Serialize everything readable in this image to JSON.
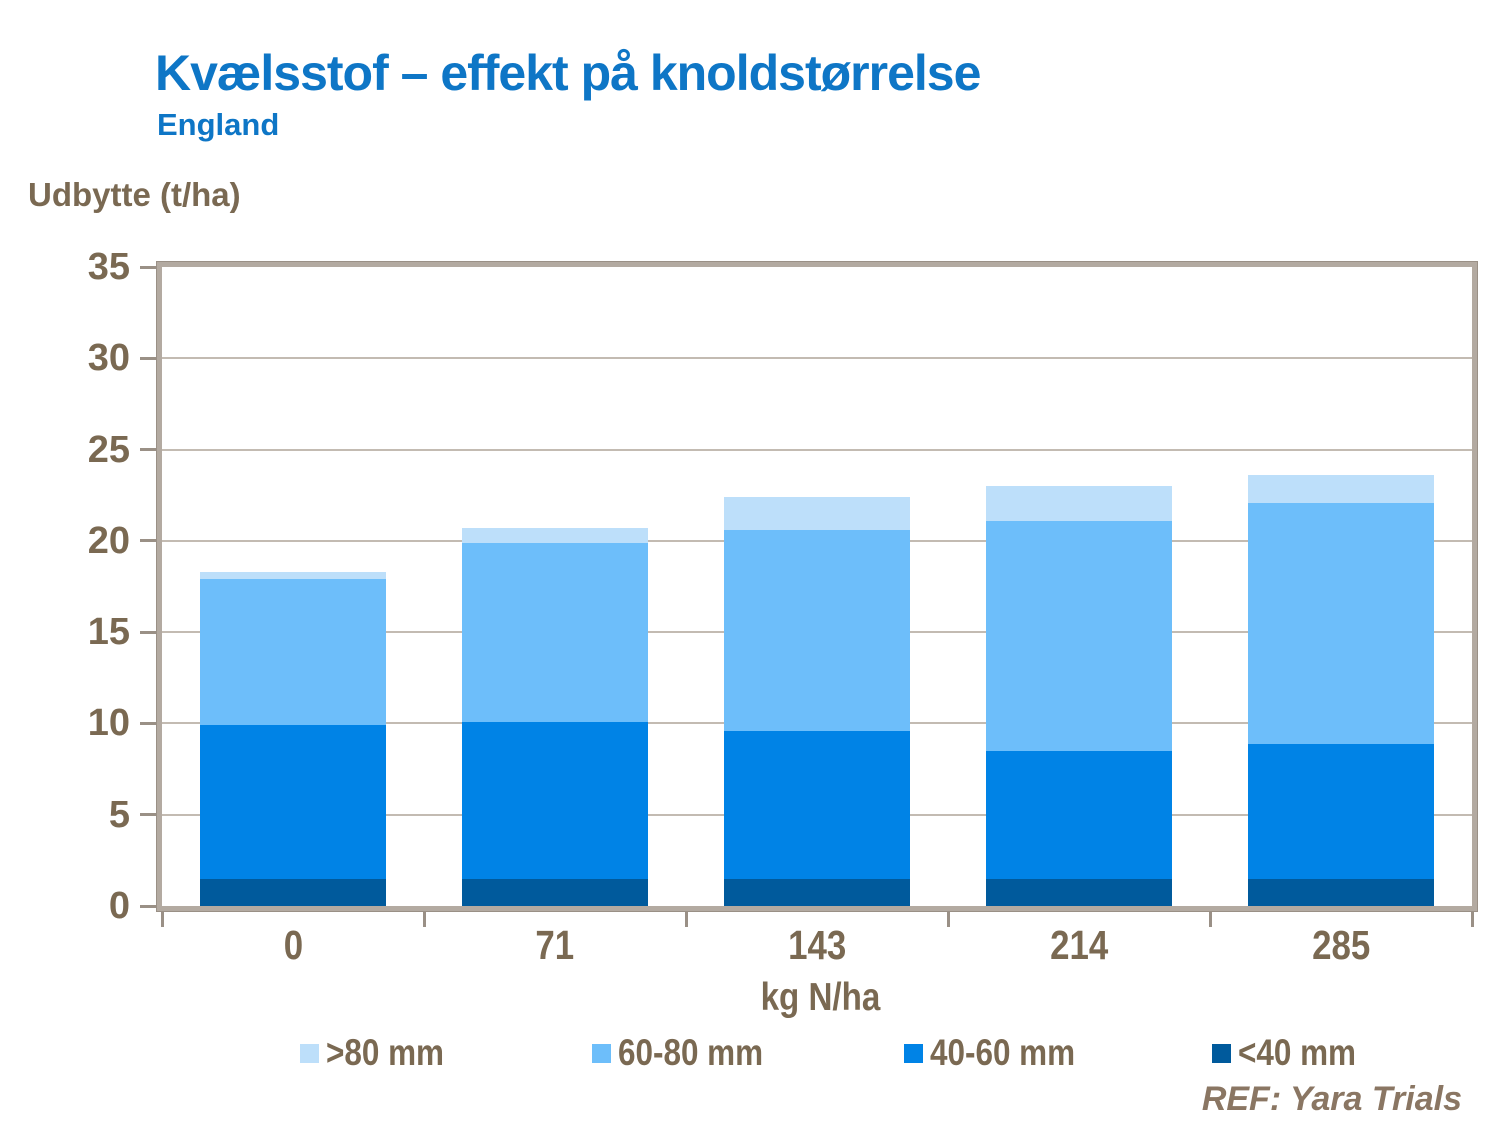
{
  "slide": {
    "title": "Kvælsstof – effekt på knoldstørrelse",
    "subtitle": "England",
    "ref": "REF: Yara Trials"
  },
  "chart_data": {
    "type": "bar",
    "stacked": true,
    "title": "Kvælsstof – effekt på knoldstørrelse (England)",
    "ylabel": "Udbytte (t/ha)",
    "xlabel": "kg N/ha",
    "ylim": [
      0,
      35
    ],
    "yticks": [
      0,
      5,
      10,
      15,
      20,
      25,
      30,
      35
    ],
    "grid": true,
    "legend_position": "bottom",
    "categories": [
      "0",
      "71",
      "143",
      "214",
      "285"
    ],
    "series": [
      {
        "name": "<40 mm",
        "color": "#005A9C",
        "values": [
          1.5,
          1.5,
          1.5,
          1.5,
          1.5
        ]
      },
      {
        "name": "40-60 mm",
        "color": "#0083E6",
        "values": [
          8.4,
          8.6,
          8.1,
          7.0,
          7.4
        ]
      },
      {
        "name": "60-80 mm",
        "color": "#6DBEFA",
        "values": [
          8.0,
          9.8,
          11.0,
          12.6,
          13.2
        ]
      },
      {
        "name": ">80 mm",
        "color": "#BDDFFA",
        "values": [
          0.4,
          0.8,
          1.8,
          1.9,
          1.5
        ]
      }
    ],
    "legend_order": [
      ">80 mm",
      "60-80 mm",
      "40-60 mm",
      "<40 mm"
    ]
  },
  "style": {
    "background": "#FFFFFF",
    "title_color": "#0E76C6",
    "axis_text_color": "#7A6952",
    "footer_color": "#8A7663",
    "gridline_color": "#C3BBB2",
    "frame_color": "#B3AAA1",
    "tick_color": "#9A9086"
  }
}
